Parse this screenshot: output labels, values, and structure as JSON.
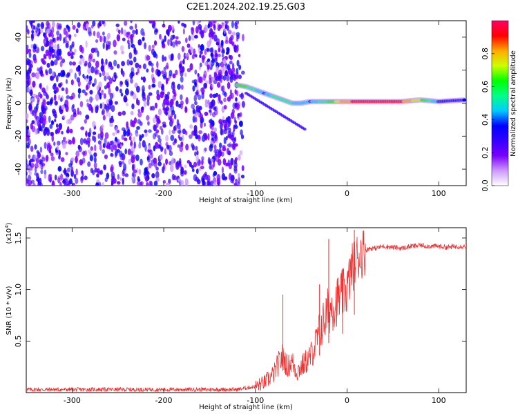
{
  "title": "C2E1.2024.202.19.25.G03",
  "chart_data": [
    {
      "type": "heatmap",
      "xlabel": "Height of straight line (km)",
      "ylabel": "Frequency (Hz)",
      "xlim": [
        -350,
        130
      ],
      "ylim": [
        -50,
        50
      ],
      "xticks": [
        -300,
        -200,
        -100,
        0,
        100
      ],
      "yticks": [
        -40,
        -20,
        0,
        20,
        40
      ],
      "colorbar": {
        "label": "Normalized spectral amplitude",
        "range": [
          0,
          1
        ],
        "ticks": [
          "0.0",
          "0.2",
          "0.4",
          "0.6",
          "0.8"
        ],
        "tick_values": [
          0.0,
          0.2,
          0.4,
          0.6,
          0.8
        ],
        "colors": [
          "#ffffff",
          "#cc99ff",
          "#7a00ff",
          "#3300ff",
          "#0000ff",
          "#00ccff",
          "#00ff88",
          "#00ff00",
          "#ccff00",
          "#ffaa00",
          "#ff0000",
          "#ff0066"
        ]
      },
      "features": {
        "noise_region_x": [
          -350,
          -120
        ],
        "signal_track": [
          {
            "x": -120,
            "y": 11,
            "amp": 0.65
          },
          {
            "x": -110,
            "y": 10,
            "amp": 0.6
          },
          {
            "x": -100,
            "y": 8,
            "amp": 0.5
          },
          {
            "x": -90,
            "y": 6,
            "amp": 0.4
          },
          {
            "x": -80,
            "y": 4,
            "amp": 0.55
          },
          {
            "x": -70,
            "y": 2,
            "amp": 0.55
          },
          {
            "x": -60,
            "y": 0,
            "amp": 0.5
          },
          {
            "x": -50,
            "y": 0,
            "amp": 0.45
          },
          {
            "x": -40,
            "y": 1,
            "amp": 0.4
          },
          {
            "x": -30,
            "y": 1,
            "amp": 0.5
          },
          {
            "x": -20,
            "y": 1,
            "amp": 0.6
          },
          {
            "x": 0,
            "y": 1,
            "amp": 0.85
          },
          {
            "x": 20,
            "y": 1,
            "amp": 0.9
          },
          {
            "x": 40,
            "y": 1,
            "amp": 0.9
          },
          {
            "x": 60,
            "y": 1,
            "amp": 0.88
          },
          {
            "x": 80,
            "y": 2,
            "amp": 0.7
          },
          {
            "x": 100,
            "y": 1,
            "amp": 0.4
          },
          {
            "x": 130,
            "y": 2,
            "amp": 0.35
          }
        ]
      }
    },
    {
      "type": "line",
      "xlabel": "Height of straight line (km)",
      "ylabel": "SNR (10 * v/v)",
      "ymultiplier": "(x10",
      "ymultiplier_exp": "4",
      "ymultiplier_close": ")",
      "xlim": [
        -350,
        130
      ],
      "ylim": [
        0,
        1.6
      ],
      "xticks": [
        -300,
        -200,
        -100,
        0,
        100
      ],
      "yticks": [
        0.5,
        1.0,
        1.5
      ],
      "ytick_labels": [
        "0.5",
        "1.0",
        "1.5"
      ],
      "color": "#ee3333",
      "series": [
        {
          "x": [
            -350,
            -300,
            -250,
            -200,
            -150,
            -120,
            -100,
            -90,
            -80,
            -75,
            -70,
            -65,
            -60,
            -55,
            -50,
            -45,
            -40,
            -35,
            -30,
            -25,
            -20,
            -15,
            -10,
            -5,
            0,
            5,
            10,
            15,
            20,
            25,
            30,
            40,
            50,
            60,
            70,
            80,
            90,
            100,
            110,
            120,
            130
          ],
          "y": [
            0.03,
            0.03,
            0.03,
            0.03,
            0.03,
            0.03,
            0.06,
            0.1,
            0.18,
            0.28,
            0.35,
            0.25,
            0.3,
            0.2,
            0.25,
            0.3,
            0.35,
            0.45,
            0.6,
            0.7,
            0.8,
            0.85,
            0.9,
            0.95,
            1.0,
            1.2,
            1.3,
            1.35,
            1.38,
            1.4,
            1.4,
            1.42,
            1.41,
            1.4,
            1.42,
            1.43,
            1.42,
            1.42,
            1.41,
            1.42,
            1.42
          ]
        }
      ],
      "spikes": [
        {
          "x": -70,
          "y": 0.95
        },
        {
          "x": -20,
          "y": 1.49
        },
        {
          "x": 8,
          "y": 1.58
        },
        {
          "x": -30,
          "y": 1.05
        },
        {
          "x": -5,
          "y": 1.2
        }
      ]
    }
  ]
}
